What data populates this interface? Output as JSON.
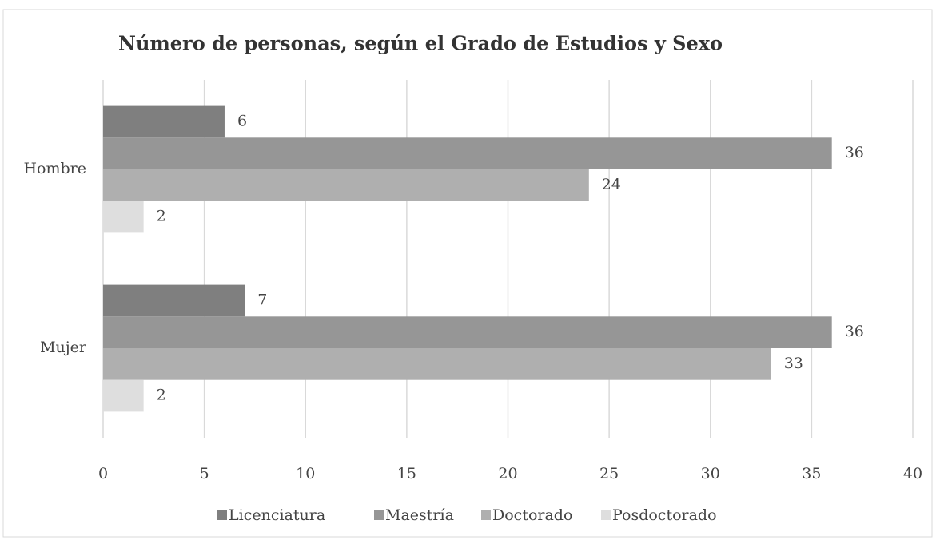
{
  "chart_data": {
    "type": "barh",
    "title": "Número de personas, según el Grado de Estudios y Sexo",
    "categories": [
      "Hombre",
      "Mujer"
    ],
    "series": [
      {
        "name": "Licenciatura",
        "color": "#7f7f7f",
        "values": [
          6,
          7
        ]
      },
      {
        "name": "Maestría",
        "color": "#969696",
        "values": [
          36,
          36
        ]
      },
      {
        "name": "Doctorado",
        "color": "#afafaf",
        "values": [
          24,
          33
        ]
      },
      {
        "name": "Posdoctorado",
        "color": "#dedede",
        "values": [
          2,
          2
        ]
      }
    ],
    "xlim": [
      0,
      40
    ],
    "xticks": [
      0,
      5,
      10,
      15,
      20,
      25,
      30,
      35,
      40
    ],
    "grid": true,
    "legend": "bottom"
  }
}
